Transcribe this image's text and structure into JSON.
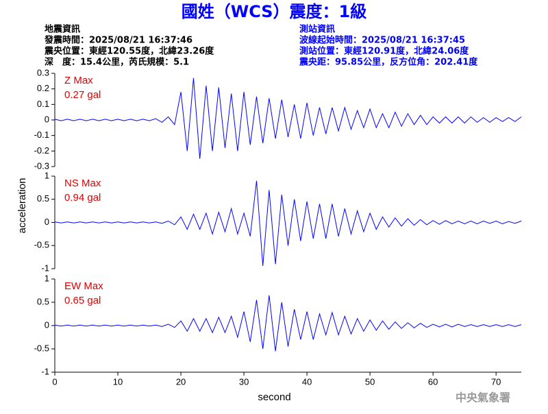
{
  "header": {
    "title": "國姓（WCS）震度：1級",
    "quake": [
      "地震資訊",
      "發震時間：2025/08/21 16:37:46",
      "震央位置：東經120.55度，北緯23.26度",
      "深　度：15.4公里，芮氏規模：5.1"
    ],
    "station": [
      "測站資訊",
      "波線起始時間：2025/08/21 16:37:45",
      "測站位置：東經120.91度，北緯24.06度",
      "震央距：95.85公里，反方位角：202.41度"
    ],
    "footer": "中央氣象署"
  },
  "chart_data": [
    {
      "type": "line",
      "label": "Z Max",
      "peak": "0.27 gal",
      "color": "#0000ff",
      "xlim": [
        0,
        74
      ],
      "ylim": [
        -0.3,
        0.3
      ],
      "yticks": [
        -0.3,
        -0.2,
        -0.1,
        0,
        0.1,
        0.2,
        0.3
      ],
      "x": [
        0,
        1,
        2,
        3,
        4,
        5,
        6,
        7,
        8,
        9,
        10,
        11,
        12,
        13,
        14,
        15,
        16,
        17,
        18,
        19,
        20,
        21,
        22,
        23,
        24,
        25,
        26,
        27,
        28,
        29,
        30,
        31,
        32,
        33,
        34,
        35,
        36,
        37,
        38,
        39,
        40,
        41,
        42,
        43,
        44,
        45,
        46,
        47,
        48,
        49,
        50,
        51,
        52,
        53,
        54,
        55,
        56,
        57,
        58,
        59,
        60,
        61,
        62,
        63,
        64,
        65,
        66,
        67,
        68,
        69,
        70,
        71,
        72,
        73,
        74
      ],
      "values": [
        0.005,
        -0.005,
        0.005,
        -0.005,
        0.005,
        -0.005,
        0.005,
        -0.005,
        0.005,
        -0.005,
        0.005,
        -0.005,
        0.005,
        -0.005,
        0.005,
        -0.005,
        0.008,
        -0.015,
        0.02,
        -0.03,
        0.18,
        -0.2,
        0.27,
        -0.25,
        0.22,
        -0.2,
        0.21,
        -0.18,
        0.17,
        -0.2,
        0.18,
        -0.16,
        0.15,
        -0.15,
        0.14,
        -0.12,
        0.13,
        -0.11,
        0.1,
        -0.12,
        0.11,
        -0.1,
        0.08,
        -0.09,
        0.08,
        -0.07,
        0.08,
        -0.06,
        0.06,
        -0.05,
        0.07,
        -0.05,
        0.04,
        -0.05,
        0.05,
        -0.04,
        0.04,
        -0.03,
        0.03,
        -0.03,
        0.02,
        -0.02,
        0.02,
        -0.02,
        0.02,
        -0.02,
        0.02,
        -0.015,
        0.015,
        -0.015,
        0.015,
        -0.01,
        0.015,
        -0.01,
        0.02
      ]
    },
    {
      "type": "line",
      "label": "NS Max",
      "peak": "0.94 gal",
      "color": "#0000ff",
      "ylabel": "acceleration",
      "xlim": [
        0,
        74
      ],
      "ylim": [
        -1,
        1
      ],
      "yticks": [
        -1,
        -0.5,
        0,
        0.5,
        1
      ],
      "x": [
        0,
        1,
        2,
        3,
        4,
        5,
        6,
        7,
        8,
        9,
        10,
        11,
        12,
        13,
        14,
        15,
        16,
        17,
        18,
        19,
        20,
        21,
        22,
        23,
        24,
        25,
        26,
        27,
        28,
        29,
        30,
        31,
        32,
        33,
        34,
        35,
        36,
        37,
        38,
        39,
        40,
        41,
        42,
        43,
        44,
        45,
        46,
        47,
        48,
        49,
        50,
        51,
        52,
        53,
        54,
        55,
        56,
        57,
        58,
        59,
        60,
        61,
        62,
        63,
        64,
        65,
        66,
        67,
        68,
        69,
        70,
        71,
        72,
        73,
        74
      ],
      "values": [
        0.01,
        -0.01,
        0.01,
        -0.01,
        0.01,
        -0.01,
        0.01,
        -0.01,
        0.01,
        -0.01,
        0.01,
        -0.01,
        0.01,
        -0.01,
        0.01,
        -0.01,
        0.01,
        -0.02,
        0.03,
        -0.05,
        0.12,
        -0.15,
        0.18,
        -0.15,
        0.2,
        -0.25,
        0.22,
        -0.2,
        0.3,
        -0.25,
        0.2,
        -0.3,
        0.9,
        -0.94,
        0.7,
        -0.9,
        0.6,
        -0.5,
        0.5,
        -0.4,
        0.45,
        -0.35,
        0.4,
        -0.35,
        0.4,
        -0.3,
        0.3,
        -0.25,
        0.25,
        -0.2,
        0.2,
        -0.15,
        0.12,
        -0.1,
        0.1,
        -0.08,
        0.08,
        -0.06,
        0.06,
        -0.05,
        0.04,
        -0.04,
        0.04,
        -0.03,
        0.03,
        -0.03,
        0.03,
        -0.03,
        0.03,
        -0.02,
        0.03,
        -0.03,
        0.02,
        -0.02,
        0.03
      ]
    },
    {
      "type": "line",
      "label": "EW Max",
      "peak": "0.65 gal",
      "color": "#0000ff",
      "xlabel": "second",
      "xlim": [
        0,
        74
      ],
      "xticks": [
        0,
        10,
        20,
        30,
        40,
        50,
        60,
        70
      ],
      "ylim": [
        -1,
        1
      ],
      "yticks": [
        -1,
        -0.5,
        0,
        0.5,
        1
      ],
      "x": [
        0,
        1,
        2,
        3,
        4,
        5,
        6,
        7,
        8,
        9,
        10,
        11,
        12,
        13,
        14,
        15,
        16,
        17,
        18,
        19,
        20,
        21,
        22,
        23,
        24,
        25,
        26,
        27,
        28,
        29,
        30,
        31,
        32,
        33,
        34,
        35,
        36,
        37,
        38,
        39,
        40,
        41,
        42,
        43,
        44,
        45,
        46,
        47,
        48,
        49,
        50,
        51,
        52,
        53,
        54,
        55,
        56,
        57,
        58,
        59,
        60,
        61,
        62,
        63,
        64,
        65,
        66,
        67,
        68,
        69,
        70,
        71,
        72,
        73,
        74
      ],
      "values": [
        0.01,
        -0.01,
        0.01,
        -0.01,
        0.01,
        -0.01,
        0.01,
        -0.01,
        0.01,
        -0.01,
        0.01,
        -0.01,
        0.01,
        -0.01,
        0.01,
        -0.01,
        0.01,
        -0.02,
        0.03,
        -0.04,
        0.1,
        -0.12,
        0.15,
        -0.12,
        0.15,
        -0.15,
        0.18,
        -0.15,
        0.2,
        -0.25,
        0.3,
        -0.35,
        0.55,
        -0.5,
        0.65,
        -0.55,
        0.5,
        -0.45,
        0.35,
        -0.3,
        0.3,
        -0.3,
        0.25,
        -0.2,
        0.28,
        -0.2,
        0.2,
        -0.18,
        0.15,
        -0.12,
        0.12,
        -0.1,
        0.1,
        -0.08,
        0.08,
        -0.06,
        0.06,
        -0.05,
        0.05,
        -0.04,
        0.03,
        -0.03,
        0.03,
        -0.03,
        0.03,
        -0.02,
        0.02,
        -0.02,
        0.02,
        -0.02,
        0.02,
        -0.02,
        0.02,
        -0.02,
        0.02
      ]
    }
  ]
}
